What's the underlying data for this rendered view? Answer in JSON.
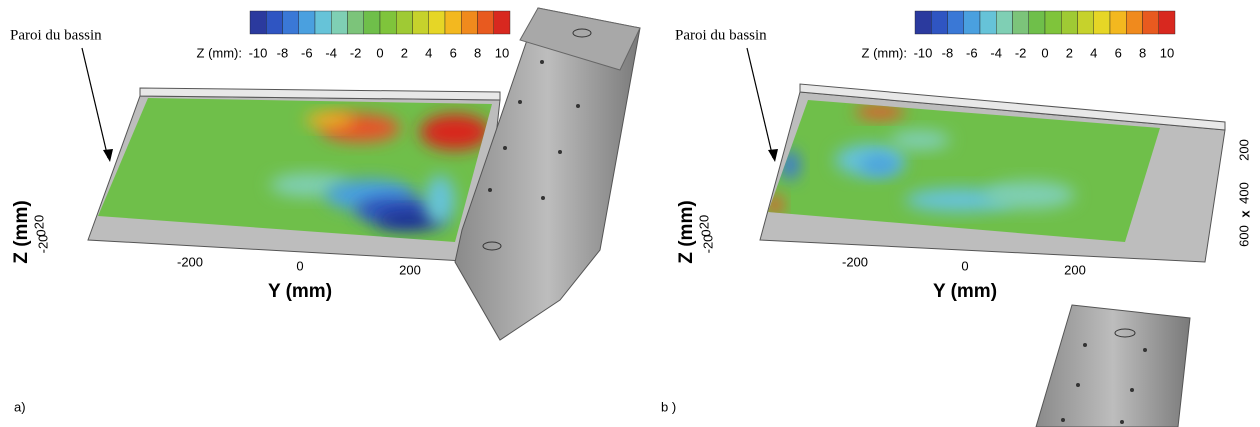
{
  "panels": [
    {
      "label": "a)",
      "wall_label": "Paroi du bassin",
      "colorbar": {
        "title": "Z (mm):",
        "ticks": [
          -10,
          -8,
          -6,
          -4,
          -2,
          0,
          2,
          4,
          6,
          8,
          10
        ]
      },
      "y_axis": {
        "title": "Y (mm)",
        "ticks": [
          -200,
          0,
          200
        ]
      },
      "z_axis": {
        "title": "Z (mm)",
        "ticks": [
          20,
          0,
          -20
        ]
      }
    },
    {
      "label": "b )",
      "wall_label": "Paroi du bassin",
      "colorbar": {
        "title": "Z (mm):",
        "ticks": [
          -10,
          -8,
          -6,
          -4,
          -2,
          0,
          2,
          4,
          6,
          8,
          10
        ]
      },
      "y_axis": {
        "title": "Y (mm)",
        "ticks": [
          -200,
          0,
          200
        ]
      },
      "z_axis": {
        "title": "Z (mm)",
        "ticks": [
          20,
          0,
          -20
        ]
      },
      "x_axis": {
        "title": "x",
        "ticks": [
          200,
          400,
          600
        ]
      }
    }
  ]
}
